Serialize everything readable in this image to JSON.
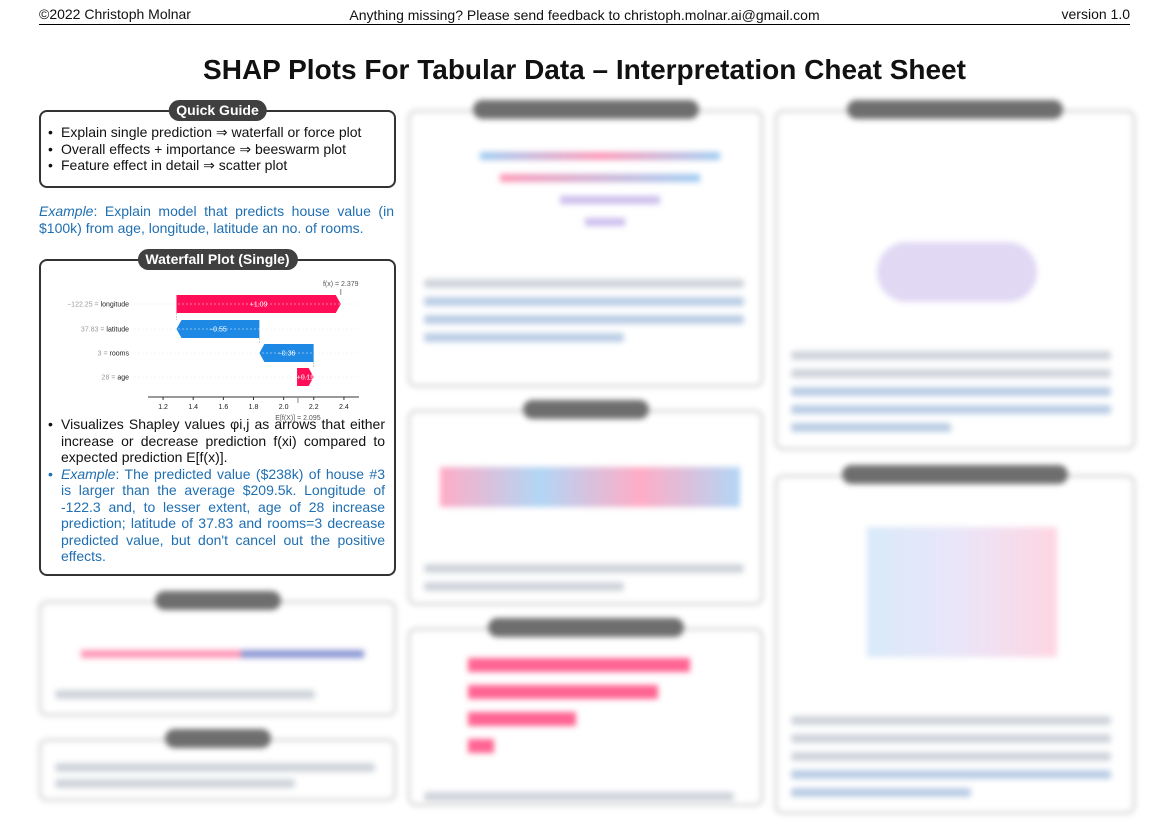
{
  "header": {
    "left": "©2022 Christoph Molnar",
    "center": "Anything missing? Please send feedback to christoph.molnar.ai@gmail.com",
    "right": "version 1.0"
  },
  "title": "SHAP Plots For Tabular Data – Interpretation Cheat Sheet",
  "quick_guide": {
    "heading": "Quick Guide",
    "items": [
      "Explain single prediction ⇒ waterfall or force plot",
      "Overall effects + importance ⇒ beeswarm plot",
      "Feature effect in detail ⇒ scatter plot"
    ]
  },
  "example_intro": {
    "label": "Example",
    "text": ": Explain model that predicts house value (in $100k) from age, longitude, latitude an no. of rooms."
  },
  "waterfall": {
    "heading": "Waterfall Plot (Single)",
    "bullet1": "Visualizes Shapley values φi,j as arrows that either increase or decrease prediction f(xi) compared to expected prediction E[f(x)].",
    "bullet2_label": "Example",
    "bullet2_text": ": The predicted value ($238k) of house #3 is larger than the average $209.5k. Longitude of -122.3 and, to lesser extent, age of 28 increase prediction; latitude of 37.83 and rooms=3 decrease predicted value, but don't cancel out the positive effects."
  },
  "chart_data": {
    "type": "bar",
    "subtype": "waterfall",
    "categories": [
      "−122.25 = longitude",
      "37.83 = latitude",
      "3 = rooms",
      "28 = age"
    ],
    "values": [
      1.09,
      -0.55,
      -0.36,
      0.11
    ],
    "value_labels": [
      "+1.09",
      "−0.55",
      "−0.36",
      "+0.11"
    ],
    "base_value": 2.095,
    "final_value": 2.379,
    "top_label": "f(x) = 2.379",
    "bottom_label": "E[f(X)] = 2.095",
    "xticks": [
      1.2,
      1.4,
      1.6,
      1.8,
      2.0,
      2.2,
      2.4
    ],
    "xlim": [
      1.1,
      2.5
    ],
    "colors": {
      "positive": "#ff0d57",
      "negative": "#1e88e5"
    }
  }
}
